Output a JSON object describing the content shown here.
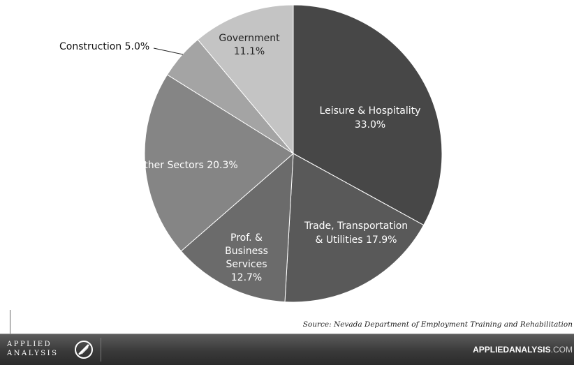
{
  "chart_data": {
    "type": "pie",
    "slices": [
      {
        "name": "Leisure & Hospitality",
        "value": 33.0,
        "label_lines": [
          "Leisure & Hospitality",
          "33.0%"
        ],
        "color": "#474747"
      },
      {
        "name": "Trade, Transportation & Utilities",
        "value": 17.9,
        "label_lines": [
          "Trade, Transportation",
          "& Utilities 17.9%"
        ],
        "color": "#595959"
      },
      {
        "name": "Prof. & Business Services",
        "value": 12.7,
        "label_lines": [
          "Prof. &",
          "Business",
          "Services",
          "12.7%"
        ],
        "color": "#6b6b6b"
      },
      {
        "name": "Other Sectors",
        "value": 20.3,
        "label_lines": [
          "Other Sectors 20.3%"
        ],
        "color": "#858585"
      },
      {
        "name": "Construction",
        "value": 5.0,
        "label_lines": [
          "Construction 5.0%"
        ],
        "color": "#a4a4a4"
      },
      {
        "name": "Government",
        "value": 11.1,
        "label_lines": [
          "Government",
          "11.1%"
        ],
        "color": "#c4c4c4"
      }
    ]
  },
  "source": "Source: Nevada Department of Employment Training and Rehabilitation",
  "footer": {
    "logo_top": "APPLIED",
    "logo_bottom": "ANALYSIS",
    "site_bold": "APPLIEDANALYSIS",
    "site_suffix": ".COM"
  }
}
